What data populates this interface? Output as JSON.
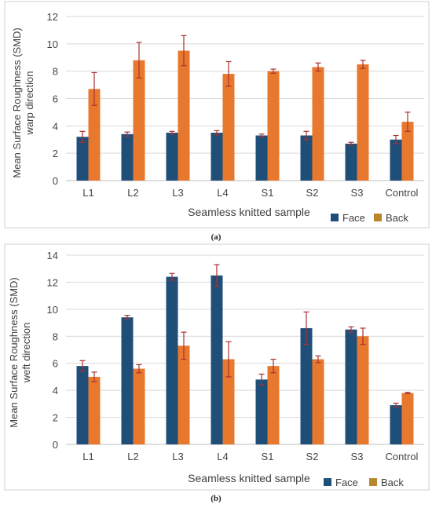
{
  "colors": {
    "face": "#1f4e79",
    "back": "#e8782e",
    "back_legend": "#b8862c",
    "error_bar": "#a83232",
    "axis_text": "#444444",
    "axis_title": "#3f3f3f",
    "gridline": "#d9d9d9",
    "frame": "#d0d0d0"
  },
  "chart_data": [
    {
      "type": "bar",
      "ylabel": "Mean Surface Roughness (SMD)\nwarp direction",
      "xlabel": "Seamless knitted sample",
      "categories": [
        "L1",
        "L2",
        "L3",
        "L4",
        "S1",
        "S2",
        "S3",
        "Control"
      ],
      "ylim": [
        0,
        12
      ],
      "yticks": [
        0,
        2,
        4,
        6,
        8,
        10,
        12
      ],
      "grid": true,
      "legend": "bottom-right",
      "series": [
        {
          "name": "Face",
          "values": [
            3.2,
            3.4,
            3.5,
            3.5,
            3.3,
            3.3,
            2.7,
            3.0
          ],
          "errors": [
            0.4,
            0.15,
            0.1,
            0.15,
            0.1,
            0.3,
            0.1,
            0.3
          ]
        },
        {
          "name": "Back",
          "values": [
            6.7,
            8.8,
            9.5,
            7.8,
            8.0,
            8.3,
            8.5,
            4.3
          ],
          "errors": [
            1.2,
            1.3,
            1.1,
            0.9,
            0.15,
            0.3,
            0.3,
            0.7
          ]
        }
      ]
    },
    {
      "type": "bar",
      "ylabel": "Mean Surface Roughness (SMD)\nweft direction",
      "xlabel": "Seamless knitted sample",
      "categories": [
        "L1",
        "L2",
        "L3",
        "L4",
        "S1",
        "S2",
        "S3",
        "Control"
      ],
      "ylim": [
        0,
        14
      ],
      "yticks": [
        0,
        2,
        4,
        6,
        8,
        10,
        12,
        14
      ],
      "grid": true,
      "legend": "bottom-right",
      "series": [
        {
          "name": "Face",
          "values": [
            5.8,
            9.4,
            12.4,
            12.5,
            4.8,
            8.6,
            8.5,
            2.9
          ],
          "errors": [
            0.4,
            0.15,
            0.25,
            0.8,
            0.4,
            1.2,
            0.2,
            0.15
          ]
        },
        {
          "name": "Back",
          "values": [
            5.0,
            5.6,
            7.3,
            6.3,
            5.8,
            6.3,
            8.0,
            3.8
          ],
          "errors": [
            0.35,
            0.3,
            1.0,
            1.3,
            0.5,
            0.25,
            0.6,
            0.05
          ]
        }
      ]
    }
  ],
  "captions": [
    "(a)",
    "(b)"
  ]
}
